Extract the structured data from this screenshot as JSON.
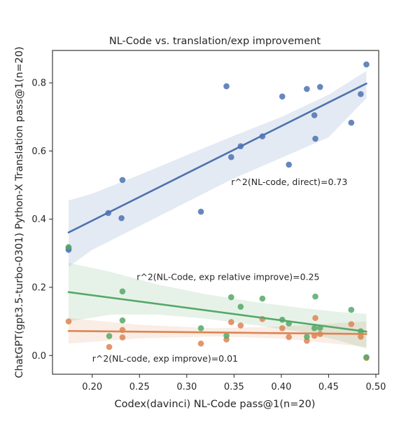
{
  "chart_data": {
    "type": "scatter",
    "title": "NL-Code vs. translation/exp improvement",
    "xlabel": "Codex(davinci) NL-Code pass@1(n=20)",
    "ylabel": "ChatGPT(gpt3.5-turbo-0301) Python-X Translation pass@1(n=20)",
    "xlim": [
      0.158,
      0.503
    ],
    "ylim": [
      -0.055,
      0.895
    ],
    "x_ticks": [
      "0.20",
      "0.25",
      "0.30",
      "0.35",
      "0.40",
      "0.45",
      "0.50"
    ],
    "y_ticks": [
      "0.0",
      "0.2",
      "0.4",
      "0.6",
      "0.8"
    ],
    "grid": false,
    "series": [
      {
        "key": "direct",
        "color": "#4c72b0",
        "x": [
          0.175,
          0.175,
          0.217,
          0.231,
          0.232,
          0.315,
          0.342,
          0.347,
          0.357,
          0.38,
          0.401,
          0.408,
          0.427,
          0.435,
          0.436,
          0.441,
          0.474,
          0.484,
          0.49
        ],
        "y": [
          0.315,
          0.31,
          0.418,
          0.403,
          0.515,
          0.422,
          0.79,
          0.582,
          0.614,
          0.643,
          0.76,
          0.56,
          0.782,
          0.705,
          0.636,
          0.788,
          0.683,
          0.767,
          0.854
        ],
        "fit": {
          "x": [
            0.175,
            0.49
          ],
          "y": [
            0.361,
            0.798
          ]
        },
        "ci": {
          "x": [
            0.175,
            0.2,
            0.25,
            0.3,
            0.35,
            0.4,
            0.45,
            0.49
          ],
          "upper": [
            0.455,
            0.475,
            0.53,
            0.588,
            0.645,
            0.7,
            0.765,
            0.835
          ],
          "lower": [
            0.26,
            0.31,
            0.38,
            0.45,
            0.52,
            0.58,
            0.64,
            0.755
          ]
        }
      },
      {
        "key": "exp_improve",
        "color": "#dd8452",
        "x": [
          0.175,
          0.218,
          0.232,
          0.232,
          0.315,
          0.342,
          0.347,
          0.357,
          0.38,
          0.401,
          0.408,
          0.427,
          0.435,
          0.436,
          0.441,
          0.474,
          0.484,
          0.49
        ],
        "y": [
          0.1,
          0.025,
          0.075,
          0.053,
          0.035,
          0.047,
          0.098,
          0.088,
          0.107,
          0.08,
          0.054,
          0.043,
          0.058,
          0.11,
          0.063,
          0.092,
          0.055,
          -0.007
        ],
        "fit": {
          "x": [
            0.175,
            0.49
          ],
          "y": [
            0.072,
            0.063
          ]
        },
        "ci": {
          "x": [
            0.175,
            0.25,
            0.33,
            0.4,
            0.49
          ],
          "upper": [
            0.11,
            0.09,
            0.08,
            0.085,
            0.1
          ],
          "lower": [
            0.035,
            0.05,
            0.056,
            0.05,
            0.025
          ]
        }
      },
      {
        "key": "exp_relative_improve",
        "color": "#55a868",
        "x": [
          0.175,
          0.218,
          0.232,
          0.232,
          0.315,
          0.342,
          0.347,
          0.357,
          0.38,
          0.401,
          0.408,
          0.427,
          0.435,
          0.436,
          0.441,
          0.474,
          0.484,
          0.49
        ],
        "y": [
          0.318,
          0.057,
          0.188,
          0.103,
          0.08,
          0.058,
          0.171,
          0.143,
          0.167,
          0.105,
          0.094,
          0.055,
          0.08,
          0.173,
          0.081,
          0.134,
          0.071,
          -0.005
        ],
        "fit": {
          "x": [
            0.175,
            0.49
          ],
          "y": [
            0.186,
            0.07
          ]
        },
        "ci": {
          "x": [
            0.175,
            0.22,
            0.27,
            0.32,
            0.37,
            0.42,
            0.46,
            0.49
          ],
          "upper": [
            0.272,
            0.245,
            0.208,
            0.18,
            0.158,
            0.14,
            0.128,
            0.122
          ],
          "lower": [
            0.1,
            0.12,
            0.12,
            0.108,
            0.09,
            0.07,
            0.045,
            0.02
          ]
        }
      }
    ],
    "annotations": [
      {
        "text": "r^2(NL-code, direct)=0.73",
        "x": 0.347,
        "y": 0.5
      },
      {
        "text": "r^2(NL-Code, exp relative improve)=0.25",
        "x": 0.247,
        "y": 0.222
      },
      {
        "text": "r^2(NL-code, exp improve)=0.01",
        "x": 0.2,
        "y": -0.018
      }
    ]
  }
}
